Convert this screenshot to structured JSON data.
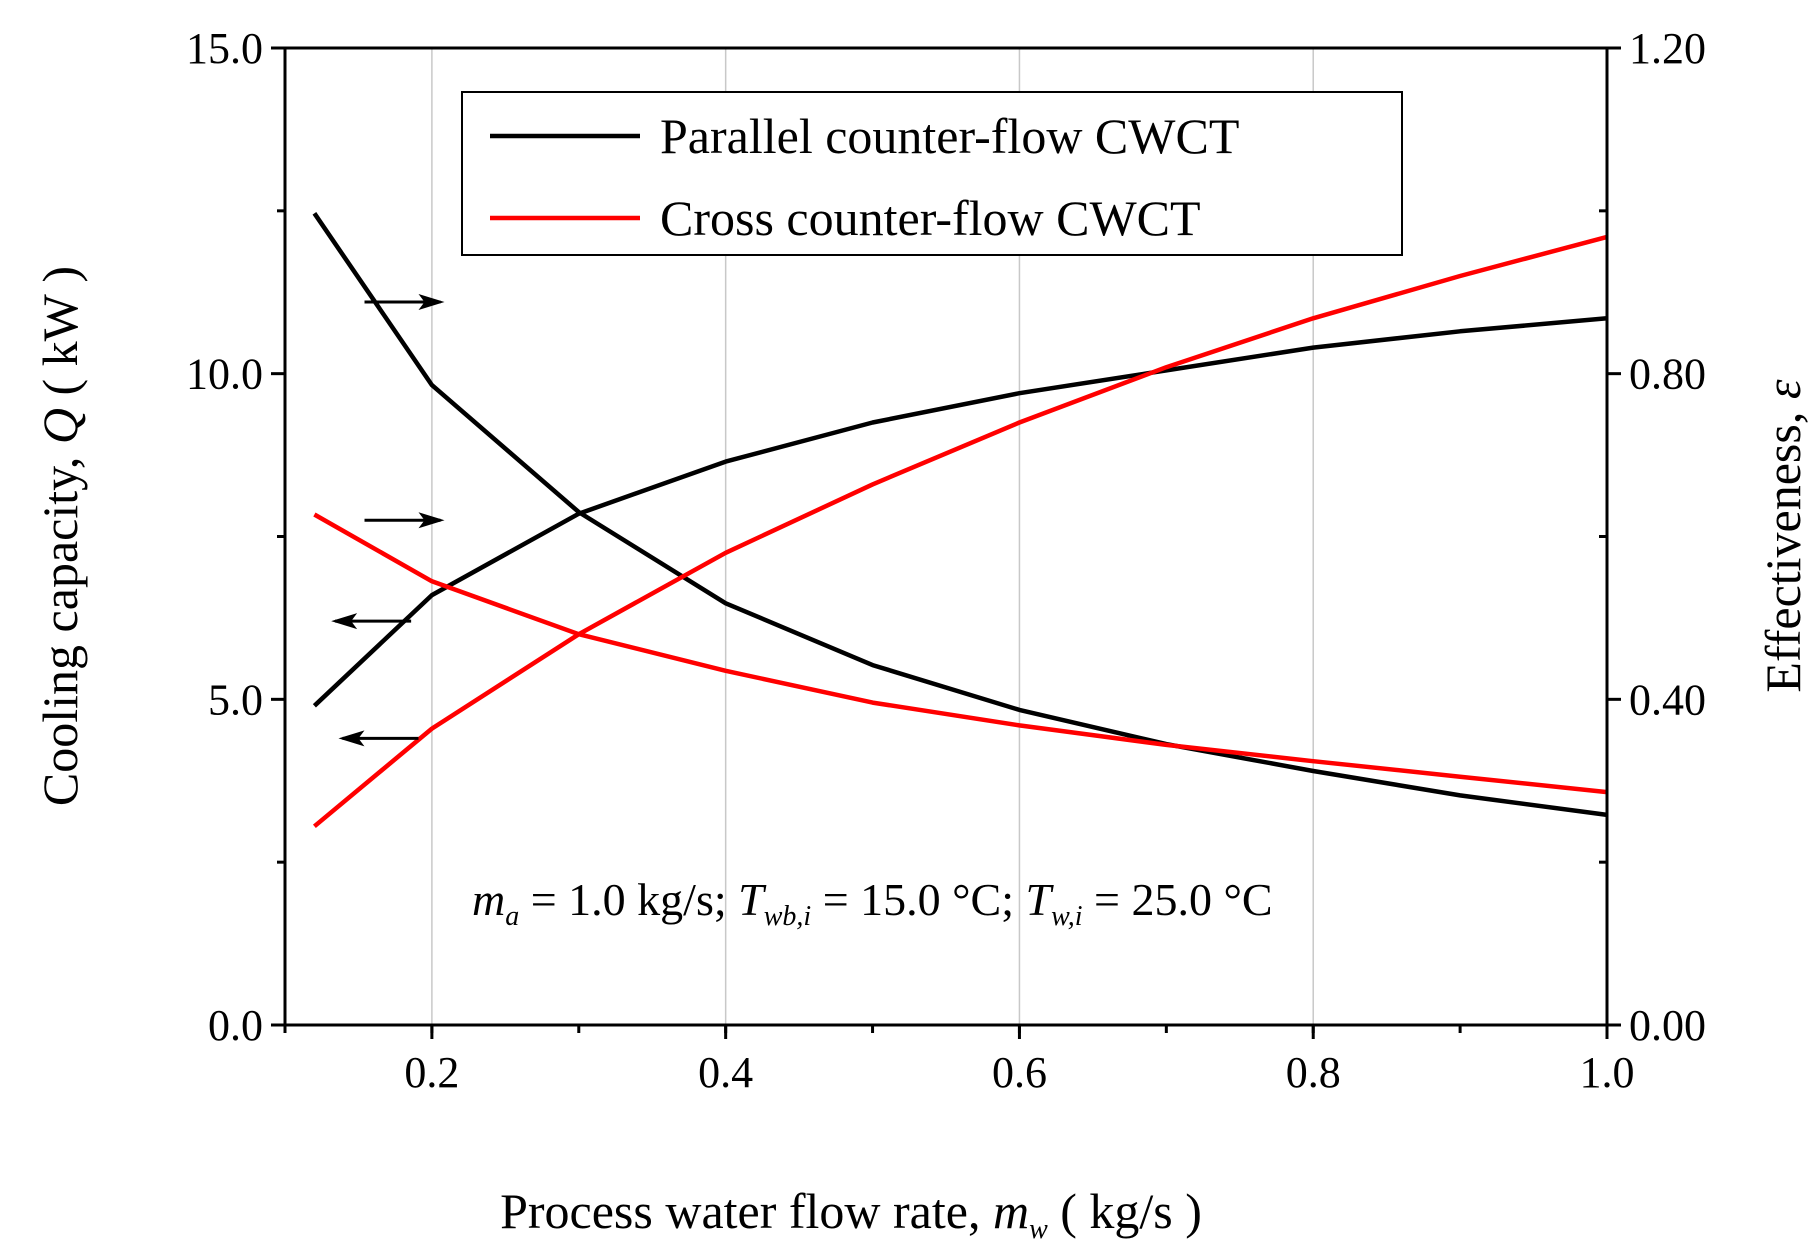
{
  "chart_data": {
    "type": "line",
    "x": [
      0.12,
      0.2,
      0.3,
      0.4,
      0.5,
      0.6,
      0.7,
      0.8,
      0.9,
      1.0
    ],
    "xlim": [
      0.1,
      1.0
    ],
    "ylim_left": [
      0,
      15
    ],
    "ylim_right": [
      0,
      1.2
    ],
    "xticks": [
      {
        "value": 0.2,
        "label": "0.2"
      },
      {
        "value": 0.4,
        "label": "0.4"
      },
      {
        "value": 0.6,
        "label": "0.6"
      },
      {
        "value": 0.8,
        "label": "0.8"
      },
      {
        "value": 1.0,
        "label": "1.0"
      }
    ],
    "yticks_left": [
      {
        "value": 0,
        "label": "0.0"
      },
      {
        "value": 5,
        "label": "5.0"
      },
      {
        "value": 10,
        "label": "10.0"
      },
      {
        "value": 15,
        "label": "15.0"
      }
    ],
    "yticks_right": [
      {
        "value": 0,
        "label": "0.00"
      },
      {
        "value": 0.4,
        "label": "0.40"
      },
      {
        "value": 0.8,
        "label": "0.80"
      },
      {
        "value": 1.2,
        "label": "1.20"
      }
    ],
    "xlabel": {
      "prefix": "Process water flow rate, ",
      "var": "m",
      "sub": "w",
      "suffix": " ( kg/s )"
    },
    "ylabel_left": {
      "prefix": "Cooling capacity, ",
      "var": "Q",
      "suffix": " ( kW )"
    },
    "ylabel_right": {
      "prefix": "Effectiveness, ",
      "var": "ε"
    },
    "annotation": {
      "m": "m",
      "m_sub": "a",
      "part1": " = 1.0 kg/s; ",
      "T1": "T",
      "T1_sub": "wb,i",
      "part2": " = 15.0 °C; ",
      "T2": "T",
      "T2_sub": "w,i",
      "part3": " = 25.0 °C"
    },
    "series": [
      {
        "name": "Parallel counter-flow CWCT",
        "metric": "Cooling capacity",
        "axis": "left",
        "color": "#000000",
        "values": [
          4.9,
          6.6,
          7.85,
          8.65,
          9.25,
          9.7,
          10.05,
          10.4,
          10.65,
          10.85
        ]
      },
      {
        "name": "Parallel counter-flow CWCT",
        "metric": "Effectiveness",
        "axis": "right",
        "color": "#000000",
        "values": [
          0.997,
          0.786,
          0.63,
          0.518,
          0.442,
          0.387,
          0.345,
          0.312,
          0.282,
          0.258
        ]
      },
      {
        "name": "Cross counter-flow CWCT",
        "metric": "Cooling capacity",
        "axis": "left",
        "color": "#ff0000",
        "values": [
          3.05,
          4.55,
          6.0,
          7.25,
          8.3,
          9.25,
          10.1,
          10.85,
          11.5,
          12.1
        ]
      },
      {
        "name": "Cross counter-flow CWCT",
        "metric": "Effectiveness",
        "axis": "right",
        "color": "#ff0000",
        "values": [
          0.627,
          0.545,
          0.48,
          0.435,
          0.396,
          0.368,
          0.344,
          0.324,
          0.305,
          0.286
        ]
      }
    ],
    "legend": [
      {
        "label": "Parallel counter-flow CWCT",
        "color": "#000000"
      },
      {
        "label": "Cross counter-flow CWCT",
        "color": "#ff0000"
      }
    ],
    "arrows": [
      {
        "direction": "right",
        "x": 0.18,
        "y_left": 11.1
      },
      {
        "direction": "right",
        "x": 0.18,
        "y_left": 7.75
      },
      {
        "direction": "left",
        "x": 0.16,
        "y_left": 6.2
      },
      {
        "direction": "left",
        "x": 0.165,
        "y_left": 4.4
      }
    ]
  }
}
